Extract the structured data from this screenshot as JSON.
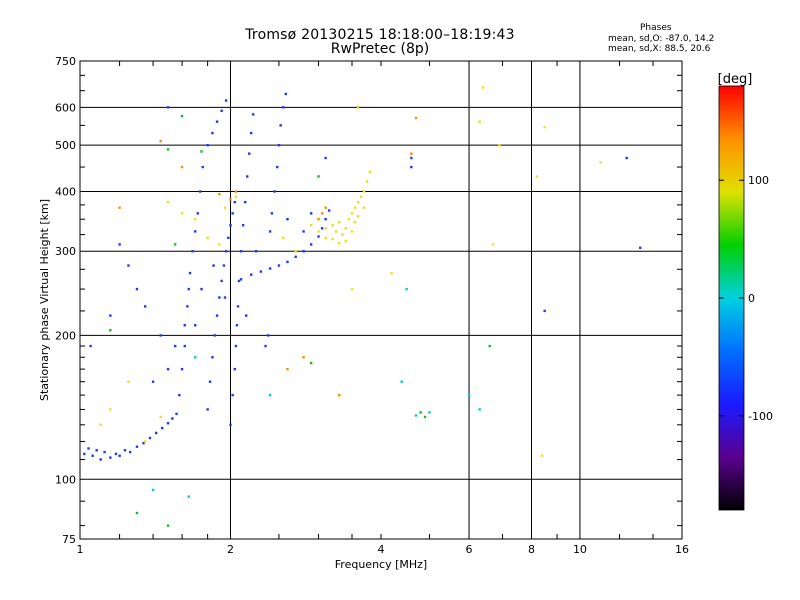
{
  "title": {
    "line1": "Tromsø 20130215 18:18:00–18:19:43",
    "line2": "RwPretec (8p)"
  },
  "phase_info": {
    "title": "Phases",
    "line1": "mean, sd,O: -87.0, 14.2",
    "line2": "mean, sd,X: 88.5, 20.6"
  },
  "colorbar": {
    "label": "[deg]",
    "ticks": [
      "100",
      "0",
      "-100"
    ],
    "tick_values": [
      100,
      0,
      -100
    ],
    "range": [
      -180,
      180
    ],
    "stops": [
      "#000000",
      "#5a0090",
      "#1a1aff",
      "#0070ff",
      "#00d0e0",
      "#00d000",
      "#e0e000",
      "#ff9000",
      "#ff0000"
    ]
  },
  "chart_data": {
    "type": "scatter",
    "xlabel": "Frequency [MHz]",
    "ylabel": "Stationary phase Virtual Height [km]",
    "x_scale": "log",
    "y_scale": "log",
    "xlim": [
      1,
      16
    ],
    "ylim": [
      75,
      750
    ],
    "x_ticks": [
      "1",
      "2",
      "4",
      "6",
      "8",
      "10",
      "16"
    ],
    "x_tick_values": [
      1,
      2,
      4,
      6,
      8,
      10,
      16
    ],
    "y_ticks": [
      "750",
      "600",
      "500",
      "400",
      "300",
      "200",
      "100",
      "75"
    ],
    "y_tick_values": [
      750,
      600,
      500,
      400,
      300,
      200,
      100,
      75
    ],
    "x_grid": [
      2,
      6,
      8,
      10
    ],
    "y_grid": [
      100,
      200,
      300,
      400,
      500,
      600
    ],
    "series": [
      {
        "points": [
          [
            1.02,
            113
          ],
          [
            1.04,
            116
          ],
          [
            1.06,
            112
          ],
          [
            1.08,
            115
          ],
          [
            1.1,
            110
          ],
          [
            1.12,
            114
          ],
          [
            1.15,
            111
          ],
          [
            1.18,
            113
          ],
          [
            1.2,
            112
          ],
          [
            1.23,
            115
          ],
          [
            1.26,
            114
          ],
          [
            1.3,
            117
          ],
          [
            1.34,
            119
          ],
          [
            1.38,
            122
          ],
          [
            1.42,
            125
          ],
          [
            1.46,
            128
          ],
          [
            1.5,
            131
          ],
          [
            1.53,
            134
          ],
          [
            1.56,
            137
          ],
          [
            1.58,
            150
          ],
          [
            1.6,
            170
          ],
          [
            1.62,
            190
          ],
          [
            1.62,
            210
          ],
          [
            1.64,
            230
          ],
          [
            1.65,
            250
          ],
          [
            1.66,
            270
          ],
          [
            1.68,
            300
          ],
          [
            1.7,
            330
          ],
          [
            1.72,
            360
          ],
          [
            1.74,
            400
          ],
          [
            1.76,
            450
          ],
          [
            1.8,
            500
          ],
          [
            1.84,
            530
          ],
          [
            1.88,
            560
          ],
          [
            1.92,
            590
          ],
          [
            1.96,
            620
          ],
          [
            1.8,
            140
          ],
          [
            1.82,
            160
          ],
          [
            1.84,
            180
          ],
          [
            1.86,
            200
          ],
          [
            1.88,
            220
          ],
          [
            1.9,
            240
          ],
          [
            1.92,
            260
          ],
          [
            1.94,
            280
          ],
          [
            1.96,
            300
          ],
          [
            1.98,
            320
          ],
          [
            2.0,
            340
          ],
          [
            2.02,
            360
          ],
          [
            2.04,
            380
          ],
          [
            2.0,
            130
          ],
          [
            2.02,
            150
          ],
          [
            2.04,
            170
          ],
          [
            2.05,
            190
          ],
          [
            2.06,
            210
          ],
          [
            2.07,
            230
          ],
          [
            2.08,
            260
          ],
          [
            2.1,
            300
          ],
          [
            2.12,
            340
          ],
          [
            2.14,
            380
          ],
          [
            2.16,
            430
          ],
          [
            2.18,
            480
          ],
          [
            2.2,
            530
          ],
          [
            2.22,
            580
          ],
          [
            2.1,
            262
          ],
          [
            2.2,
            268
          ],
          [
            2.3,
            272
          ],
          [
            2.4,
            276
          ],
          [
            2.5,
            280
          ],
          [
            2.6,
            285
          ],
          [
            2.7,
            292
          ],
          [
            2.8,
            300
          ],
          [
            2.9,
            310
          ],
          [
            3.0,
            322
          ],
          [
            3.05,
            335
          ],
          [
            3.1,
            350
          ],
          [
            3.15,
            365
          ],
          [
            2.4,
            330
          ],
          [
            2.42,
            360
          ],
          [
            2.45,
            400
          ],
          [
            2.48,
            450
          ],
          [
            2.5,
            500
          ],
          [
            2.52,
            550
          ],
          [
            2.55,
            600
          ],
          [
            2.58,
            640
          ],
          [
            2.35,
            190
          ],
          [
            2.38,
            200
          ],
          [
            1.3,
            250
          ],
          [
            1.25,
            280
          ],
          [
            1.35,
            230
          ],
          [
            1.45,
            200
          ],
          [
            1.5,
            170
          ],
          [
            1.4,
            160
          ],
          [
            1.55,
            190
          ],
          [
            1.7,
            210
          ],
          [
            1.75,
            250
          ],
          [
            1.85,
            280
          ],
          [
            1.95,
            240
          ],
          [
            2.15,
            220
          ],
          [
            2.25,
            300
          ],
          [
            2.6,
            350
          ],
          [
            2.8,
            330
          ],
          [
            2.9,
            360
          ],
          [
            3.1,
            470
          ],
          [
            4.6,
            470
          ],
          [
            4.6,
            450
          ],
          [
            12.4,
            470
          ],
          [
            13.2,
            305
          ],
          [
            8.5,
            225
          ],
          [
            1.05,
            190
          ],
          [
            1.15,
            220
          ],
          [
            1.5,
            600
          ],
          [
            1.2,
            310
          ],
          [
            3.6,
            600
          ]
        ]
      },
      {
        "points": [
          [
            3.0,
            330
          ],
          [
            3.1,
            320
          ],
          [
            3.2,
            318
          ],
          [
            3.25,
            330
          ],
          [
            3.3,
            345
          ],
          [
            3.35,
            325
          ],
          [
            3.4,
            335
          ],
          [
            3.45,
            350
          ],
          [
            3.5,
            360
          ],
          [
            3.55,
            370
          ],
          [
            3.6,
            380
          ],
          [
            3.65,
            390
          ],
          [
            3.7,
            400
          ],
          [
            3.75,
            420
          ],
          [
            3.8,
            440
          ],
          [
            3.5,
            330
          ],
          [
            3.55,
            345
          ],
          [
            3.4,
            315
          ],
          [
            3.3,
            312
          ],
          [
            3.6,
            355
          ],
          [
            3.7,
            370
          ],
          [
            3.2,
            340
          ],
          [
            3.1,
            335
          ],
          [
            1.5,
            380
          ],
          [
            1.6,
            360
          ],
          [
            1.7,
            350
          ],
          [
            1.8,
            320
          ],
          [
            1.9,
            310
          ],
          [
            1.95,
            370
          ],
          [
            2.05,
            390
          ],
          [
            2.55,
            320
          ],
          [
            2.7,
            300
          ],
          [
            1.35,
            120
          ],
          [
            1.45,
            135
          ],
          [
            1.15,
            140
          ],
          [
            1.25,
            160
          ],
          [
            1.1,
            130
          ],
          [
            6.3,
            560
          ],
          [
            6.4,
            660
          ],
          [
            6.9,
            500
          ],
          [
            8.2,
            430
          ],
          [
            8.5,
            545
          ],
          [
            11.0,
            460
          ],
          [
            8.4,
            112
          ],
          [
            2.9,
            340
          ],
          [
            4.2,
            270
          ],
          [
            3.5,
            250
          ],
          [
            3.6,
            600
          ],
          [
            6.7,
            310
          ]
        ]
      },
      {
        "points": [
          [
            3.0,
            350
          ],
          [
            3.05,
            360
          ],
          [
            3.1,
            370
          ],
          [
            2.0,
            385
          ],
          [
            2.05,
            400
          ],
          [
            1.9,
            395
          ],
          [
            4.7,
            570
          ],
          [
            4.6,
            480
          ],
          [
            1.2,
            370
          ],
          [
            1.6,
            450
          ],
          [
            1.45,
            510
          ],
          [
            2.8,
            180
          ],
          [
            3.3,
            150
          ],
          [
            2.6,
            170
          ]
        ]
      },
      {
        "points": [
          [
            1.6,
            575
          ],
          [
            1.5,
            490
          ],
          [
            1.75,
            485
          ],
          [
            1.55,
            310
          ],
          [
            1.15,
            205
          ],
          [
            3.0,
            430
          ],
          [
            4.8,
            138
          ],
          [
            4.9,
            135
          ],
          [
            6.6,
            190
          ],
          [
            1.3,
            85
          ],
          [
            1.5,
            80
          ],
          [
            2.9,
            175
          ]
        ]
      },
      {
        "points": [
          [
            4.7,
            136
          ],
          [
            5.0,
            138
          ],
          [
            4.4,
            160
          ],
          [
            6.0,
            150
          ],
          [
            6.3,
            140
          ],
          [
            2.4,
            150
          ],
          [
            1.7,
            180
          ],
          [
            1.4,
            95
          ],
          [
            1.65,
            92
          ],
          [
            4.5,
            250
          ]
        ]
      }
    ]
  }
}
